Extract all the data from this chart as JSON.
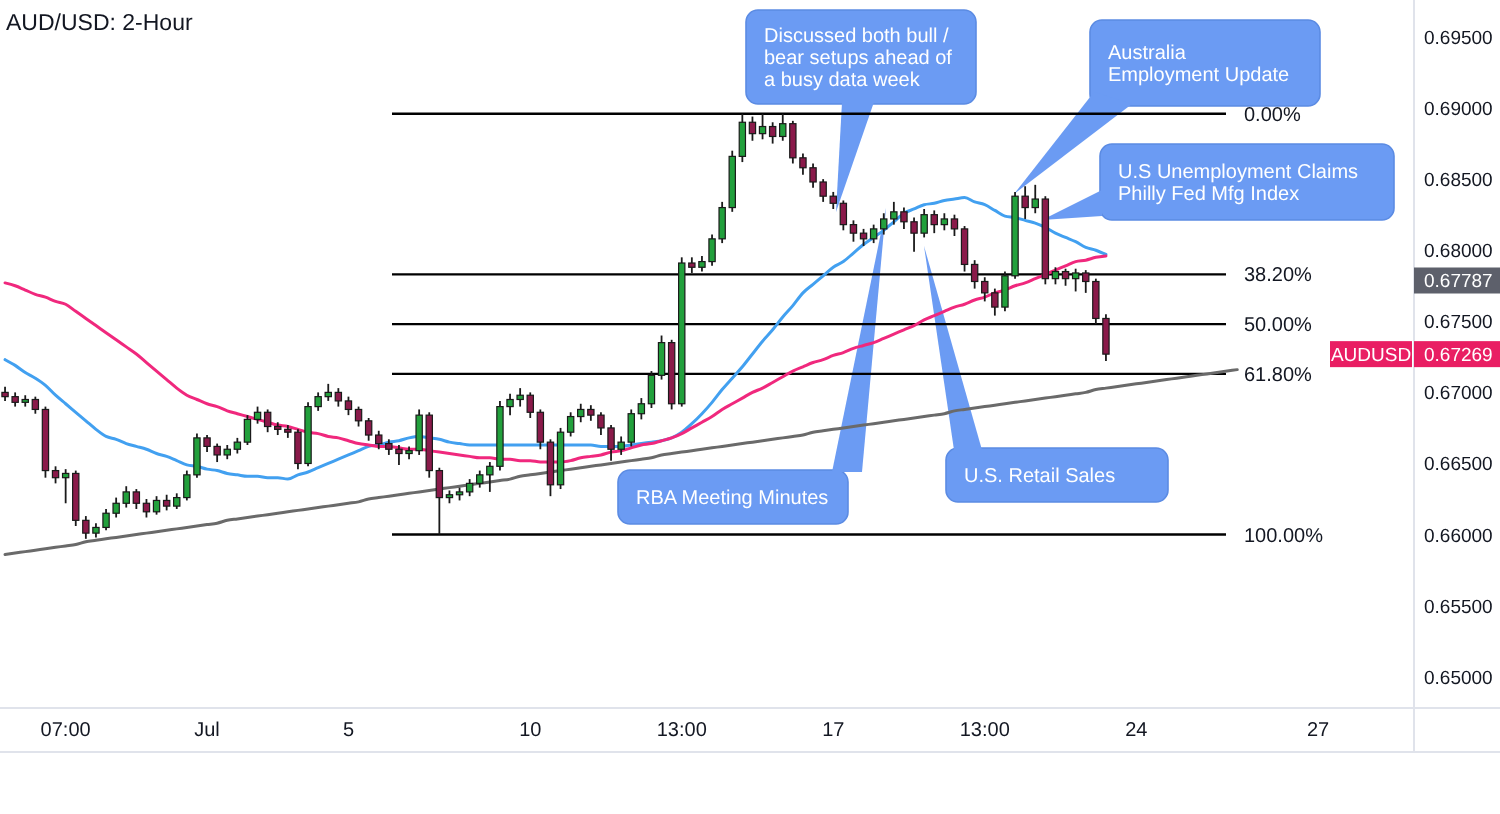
{
  "chart_data": {
    "type": "candlestick",
    "title": "AUD/USD: 2-Hour",
    "categories": [
      null,
      null,
      null,
      null,
      null,
      null,
      "07:00",
      null,
      null,
      null,
      null,
      null,
      null,
      null,
      null,
      null,
      null,
      null,
      null,
      null,
      "Jul",
      null,
      null,
      null,
      null,
      null,
      null,
      null,
      null,
      null,
      null,
      null,
      null,
      null,
      "5",
      null,
      null,
      null,
      null,
      null,
      null,
      null,
      null,
      null,
      null,
      null,
      null,
      null,
      null,
      null,
      null,
      null,
      "10",
      null,
      null,
      null,
      null,
      null,
      null,
      null,
      null,
      null,
      null,
      null,
      null,
      null,
      null,
      "13:00",
      null,
      null,
      null,
      null,
      null,
      null,
      null,
      null,
      null,
      null,
      null,
      null,
      null,
      null,
      "17",
      null,
      null,
      null,
      null,
      null,
      null,
      null,
      null,
      null,
      null,
      null,
      null,
      null,
      null,
      "13:00",
      null,
      null,
      null,
      null,
      null,
      null,
      null,
      null,
      null,
      null,
      null,
      null,
      null,
      null,
      "24",
      null,
      null,
      null,
      null,
      null,
      null,
      null,
      null,
      null,
      null,
      null,
      null,
      null,
      null,
      null,
      null,
      null,
      "27",
      null,
      null,
      null,
      null,
      null,
      null,
      null,
      null,
      null
    ],
    "ohlc": [
      [
        0.67,
        0.6704,
        0.6694,
        0.6697
      ],
      [
        0.6697,
        0.67,
        0.669,
        0.6693
      ],
      [
        0.6693,
        0.6698,
        0.669,
        0.6695
      ],
      [
        0.6695,
        0.6697,
        0.6685,
        0.6688
      ],
      [
        0.6688,
        0.669,
        0.664,
        0.6645
      ],
      [
        0.6645,
        0.6648,
        0.6636,
        0.664
      ],
      [
        0.664,
        0.6646,
        0.6622,
        0.6643
      ],
      [
        0.6643,
        0.6645,
        0.6606,
        0.661
      ],
      [
        0.661,
        0.6613,
        0.6597,
        0.6601
      ],
      [
        0.6601,
        0.6608,
        0.6598,
        0.6605
      ],
      [
        0.6605,
        0.6618,
        0.6603,
        0.6615
      ],
      [
        0.6615,
        0.6626,
        0.6612,
        0.6622
      ],
      [
        0.6622,
        0.6634,
        0.6619,
        0.663
      ],
      [
        0.663,
        0.6632,
        0.6618,
        0.6622
      ],
      [
        0.6622,
        0.6625,
        0.6612,
        0.6616
      ],
      [
        0.6616,
        0.6627,
        0.6614,
        0.6624
      ],
      [
        0.6624,
        0.6628,
        0.6617,
        0.662
      ],
      [
        0.662,
        0.6629,
        0.6618,
        0.6626
      ],
      [
        0.6626,
        0.6645,
        0.6624,
        0.6642
      ],
      [
        0.6642,
        0.6671,
        0.664,
        0.6668
      ],
      [
        0.6668,
        0.667,
        0.6658,
        0.6662
      ],
      [
        0.6662,
        0.6664,
        0.6651,
        0.6656
      ],
      [
        0.6656,
        0.6663,
        0.6653,
        0.666
      ],
      [
        0.666,
        0.6668,
        0.6657,
        0.6665
      ],
      [
        0.6665,
        0.6684,
        0.6663,
        0.6681
      ],
      [
        0.6681,
        0.669,
        0.6678,
        0.6686
      ],
      [
        0.6686,
        0.6688,
        0.6672,
        0.6676
      ],
      [
        0.6676,
        0.6679,
        0.667,
        0.6674
      ],
      [
        0.6674,
        0.6677,
        0.6668,
        0.6672
      ],
      [
        0.6672,
        0.6674,
        0.6646,
        0.665
      ],
      [
        0.665,
        0.6693,
        0.6648,
        0.669
      ],
      [
        0.669,
        0.67,
        0.6687,
        0.6697
      ],
      [
        0.6697,
        0.6706,
        0.6694,
        0.67
      ],
      [
        0.67,
        0.6703,
        0.669,
        0.6694
      ],
      [
        0.6694,
        0.6697,
        0.6684,
        0.6688
      ],
      [
        0.6688,
        0.669,
        0.6676,
        0.668
      ],
      [
        0.668,
        0.6682,
        0.6666,
        0.667
      ],
      [
        0.667,
        0.6673,
        0.666,
        0.6664
      ],
      [
        0.6664,
        0.6667,
        0.6656,
        0.666
      ],
      [
        0.666,
        0.6663,
        0.6649,
        0.6657
      ],
      [
        0.6657,
        0.6662,
        0.6653,
        0.6659
      ],
      [
        0.6659,
        0.6688,
        0.6656,
        0.6684
      ],
      [
        0.6684,
        0.6686,
        0.664,
        0.6645
      ],
      [
        0.6645,
        0.6647,
        0.66,
        0.6626
      ],
      [
        0.6626,
        0.6631,
        0.6622,
        0.6628
      ],
      [
        0.6628,
        0.6633,
        0.6624,
        0.663
      ],
      [
        0.663,
        0.6639,
        0.6627,
        0.6636
      ],
      [
        0.6636,
        0.6645,
        0.6633,
        0.6642
      ],
      [
        0.6642,
        0.6651,
        0.663,
        0.6648
      ],
      [
        0.6648,
        0.6694,
        0.6645,
        0.669
      ],
      [
        0.669,
        0.6699,
        0.6684,
        0.6695
      ],
      [
        0.6695,
        0.6703,
        0.669,
        0.6698
      ],
      [
        0.6698,
        0.67,
        0.6682,
        0.6686
      ],
      [
        0.6686,
        0.6688,
        0.666,
        0.6665
      ],
      [
        0.6665,
        0.6667,
        0.6627,
        0.6635
      ],
      [
        0.6635,
        0.6675,
        0.6632,
        0.6672
      ],
      [
        0.6672,
        0.6686,
        0.6669,
        0.6683
      ],
      [
        0.6683,
        0.6692,
        0.6679,
        0.6688
      ],
      [
        0.6688,
        0.6691,
        0.668,
        0.6684
      ],
      [
        0.6684,
        0.6686,
        0.667,
        0.6675
      ],
      [
        0.6675,
        0.6677,
        0.6652,
        0.666
      ],
      [
        0.666,
        0.6669,
        0.6656,
        0.6665
      ],
      [
        0.6665,
        0.6688,
        0.6662,
        0.6685
      ],
      [
        0.6685,
        0.6696,
        0.6681,
        0.6692
      ],
      [
        0.6692,
        0.6715,
        0.6689,
        0.6712
      ],
      [
        0.6712,
        0.674,
        0.6709,
        0.6735
      ],
      [
        0.6735,
        0.6737,
        0.6688,
        0.6692
      ],
      [
        0.6692,
        0.6795,
        0.669,
        0.6791
      ],
      [
        0.6791,
        0.6795,
        0.6784,
        0.6788
      ],
      [
        0.6788,
        0.6796,
        0.6785,
        0.6792
      ],
      [
        0.6792,
        0.6811,
        0.6789,
        0.6808
      ],
      [
        0.6808,
        0.6834,
        0.6805,
        0.683
      ],
      [
        0.683,
        0.687,
        0.6827,
        0.6866
      ],
      [
        0.6866,
        0.6896,
        0.6862,
        0.689
      ],
      [
        0.689,
        0.6894,
        0.6877,
        0.6882
      ],
      [
        0.6882,
        0.6896,
        0.6878,
        0.6887
      ],
      [
        0.6887,
        0.689,
        0.6875,
        0.688
      ],
      [
        0.688,
        0.6896,
        0.6877,
        0.6889
      ],
      [
        0.6889,
        0.6891,
        0.6861,
        0.6865
      ],
      [
        0.6865,
        0.6868,
        0.6853,
        0.6858
      ],
      [
        0.6858,
        0.6861,
        0.6844,
        0.6848
      ],
      [
        0.6848,
        0.685,
        0.6834,
        0.6838
      ],
      [
        0.6838,
        0.6841,
        0.6829,
        0.6833
      ],
      [
        0.6833,
        0.6835,
        0.6814,
        0.6818
      ],
      [
        0.6818,
        0.6821,
        0.6806,
        0.6812
      ],
      [
        0.6812,
        0.6815,
        0.6803,
        0.6808
      ],
      [
        0.6808,
        0.6818,
        0.6805,
        0.6815
      ],
      [
        0.6815,
        0.6826,
        0.6811,
        0.6822
      ],
      [
        0.6822,
        0.6834,
        0.6818,
        0.6827
      ],
      [
        0.6827,
        0.683,
        0.6815,
        0.682
      ],
      [
        0.682,
        0.6823,
        0.6799,
        0.6812
      ],
      [
        0.6812,
        0.6829,
        0.6809,
        0.6825
      ],
      [
        0.6825,
        0.6828,
        0.6812,
        0.6818
      ],
      [
        0.6818,
        0.6826,
        0.6814,
        0.6822
      ],
      [
        0.6822,
        0.6825,
        0.681,
        0.6815
      ],
      [
        0.6815,
        0.6817,
        0.6785,
        0.679
      ],
      [
        0.679,
        0.6793,
        0.6773,
        0.6778
      ],
      [
        0.6778,
        0.6781,
        0.6764,
        0.677
      ],
      [
        0.677,
        0.6773,
        0.6754,
        0.676
      ],
      [
        0.676,
        0.6785,
        0.6757,
        0.6782
      ],
      [
        0.6782,
        0.6841,
        0.678,
        0.6838
      ],
      [
        0.6838,
        0.6845,
        0.6822,
        0.683
      ],
      [
        0.683,
        0.6846,
        0.6826,
        0.6836
      ],
      [
        0.6836,
        0.6838,
        0.6776,
        0.678
      ],
      [
        0.678,
        0.6788,
        0.6776,
        0.6785
      ],
      [
        0.6785,
        0.6787,
        0.6775,
        0.678
      ],
      [
        0.678,
        0.6787,
        0.6771,
        0.6784
      ],
      [
        0.6784,
        0.6786,
        0.677,
        0.6778
      ],
      [
        0.6778,
        0.678,
        0.6748,
        0.6752
      ],
      [
        0.6752,
        0.6755,
        0.6722,
        0.67269
      ],
      null,
      null,
      null,
      null,
      null,
      null,
      null,
      null,
      null,
      null,
      null,
      null,
      null,
      null,
      null,
      null,
      null,
      null,
      null,
      null,
      null,
      null,
      null,
      null,
      null,
      null,
      null,
      null,
      null,
      null
    ],
    "colors": [
      "#8a1a4a",
      "#8a1a4a",
      "#22a03c",
      "#8a1a4a",
      "#8a1a4a",
      "#8a1a4a",
      "#22a03c",
      "#8a1a4a",
      "#8a1a4a",
      "#22a03c",
      "#22a03c",
      "#22a03c",
      "#22a03c",
      "#8a1a4a",
      "#8a1a4a",
      "#22a03c",
      "#8a1a4a",
      "#22a03c",
      "#22a03c",
      "#22a03c",
      "#8a1a4a",
      "#8a1a4a",
      "#22a03c",
      "#22a03c",
      "#22a03c",
      "#22a03c",
      "#8a1a4a",
      "#8a1a4a",
      "#8a1a4a",
      "#8a1a4a",
      "#22a03c",
      "#22a03c",
      "#22a03c",
      "#8a1a4a",
      "#8a1a4a",
      "#8a1a4a",
      "#8a1a4a",
      "#8a1a4a",
      "#8a1a4a",
      "#8a1a4a",
      "#22a03c",
      "#22a03c",
      "#8a1a4a",
      "#8a1a4a",
      "#22a03c",
      "#22a03c",
      "#22a03c",
      "#22a03c",
      "#22a03c",
      "#22a03c",
      "#22a03c",
      "#22a03c",
      "#8a1a4a",
      "#8a1a4a",
      "#8a1a4a",
      "#22a03c",
      "#22a03c",
      "#22a03c",
      "#8a1a4a",
      "#8a1a4a",
      "#8a1a4a",
      "#22a03c",
      "#22a03c",
      "#22a03c",
      "#22a03c",
      "#22a03c",
      "#8a1a4a",
      "#22a03c",
      "#8a1a4a",
      "#22a03c",
      "#22a03c",
      "#22a03c",
      "#22a03c",
      "#22a03c",
      "#8a1a4a",
      "#22a03c",
      "#8a1a4a",
      "#22a03c",
      "#8a1a4a",
      "#8a1a4a",
      "#8a1a4a",
      "#8a1a4a",
      "#8a1a4a",
      "#8a1a4a",
      "#8a1a4a",
      "#8a1a4a",
      "#22a03c",
      "#22a03c",
      "#22a03c",
      "#8a1a4a",
      "#8a1a4a",
      "#22a03c",
      "#8a1a4a",
      "#22a03c",
      "#8a1a4a",
      "#8a1a4a",
      "#8a1a4a",
      "#8a1a4a",
      "#8a1a4a",
      "#22a03c",
      "#22a03c",
      "#8a1a4a",
      "#22a03c",
      "#8a1a4a",
      "#22a03c",
      "#8a1a4a",
      "#22a03c",
      "#8a1a4a",
      "#8a1a4a",
      "#8a1a4a",
      null,
      null,
      null,
      null,
      null,
      null,
      null,
      null,
      null,
      null,
      null,
      null,
      null,
      null,
      null,
      null,
      null,
      null,
      null,
      null,
      null,
      null,
      null,
      null,
      null,
      null,
      null,
      null,
      null,
      null
    ],
    "ylim": [
      0.6478,
      0.6976
    ],
    "yticks": [
      {
        "value": 0.65,
        "label": "0.65000"
      },
      {
        "value": 0.655,
        "label": "0.65500"
      },
      {
        "value": 0.66,
        "label": "0.66000"
      },
      {
        "value": 0.665,
        "label": "0.66500"
      },
      {
        "value": 0.67,
        "label": "0.67000"
      },
      {
        "value": 0.675,
        "label": "0.67500"
      },
      {
        "value": 0.68,
        "label": "0.68000"
      },
      {
        "value": 0.685,
        "label": "0.68500"
      },
      {
        "value": 0.69,
        "label": "0.69000"
      },
      {
        "value": 0.695,
        "label": "0.69500"
      }
    ],
    "series": [
      {
        "type": "line",
        "color": "#42a0f0",
        "values": [
          0.6723,
          0.6719,
          0.6714,
          0.671,
          0.6705,
          0.6698,
          0.6692,
          0.6686,
          0.668,
          0.6674,
          0.6669,
          0.6667,
          0.6664,
          0.6662,
          0.666,
          0.6657,
          0.6655,
          0.6652,
          0.6649,
          0.6648,
          0.6646,
          0.6645,
          0.6643,
          0.6642,
          0.6641,
          0.6641,
          0.664,
          0.664,
          0.6639,
          0.6642,
          0.6644,
          0.6647,
          0.665,
          0.6653,
          0.6656,
          0.6659,
          0.6662,
          0.6663,
          0.6665,
          0.6666,
          0.6668,
          0.6669,
          0.6668,
          0.6667,
          0.6665,
          0.6664,
          0.6663,
          0.6663,
          0.6663,
          0.6663,
          0.6663,
          0.6663,
          0.6663,
          0.6663,
          0.6663,
          0.6663,
          0.6663,
          0.6663,
          0.6663,
          0.6662,
          0.6662,
          0.6662,
          0.6663,
          0.6664,
          0.6665,
          0.6666,
          0.6668,
          0.6672,
          0.6678,
          0.6685,
          0.6693,
          0.6702,
          0.671,
          0.6718,
          0.6727,
          0.6736,
          0.6744,
          0.6753,
          0.6761,
          0.677,
          0.6776,
          0.6782,
          0.6788,
          0.6792,
          0.6798,
          0.6804,
          0.6809,
          0.6814,
          0.682,
          0.6826,
          0.6829,
          0.6832,
          0.6833,
          0.6835,
          0.6836,
          0.6837,
          0.6834,
          0.6832,
          0.6828,
          0.6824,
          0.6823,
          0.6821,
          0.6819,
          0.6816,
          0.6812,
          0.6809,
          0.6806,
          0.6802,
          0.68,
          0.6797,
          null,
          null,
          null,
          null,
          null,
          null,
          null,
          null,
          null,
          null,
          null,
          null,
          null,
          null,
          null,
          null,
          null,
          null,
          null,
          null,
          null,
          null,
          null,
          null,
          null,
          null,
          null,
          null,
          null,
          null
        ]
      },
      {
        "type": "line",
        "color": "#f0287d",
        "values": [
          0.6777,
          0.6775,
          0.6772,
          0.6769,
          0.6767,
          0.6764,
          0.6762,
          0.6757,
          0.6752,
          0.6747,
          0.6742,
          0.6737,
          0.6732,
          0.6727,
          0.6721,
          0.6715,
          0.6709,
          0.6703,
          0.6698,
          0.6695,
          0.6692,
          0.669,
          0.6687,
          0.6685,
          0.6683,
          0.6681,
          0.6679,
          0.6677,
          0.6676,
          0.6674,
          0.6672,
          0.6671,
          0.6669,
          0.6668,
          0.6666,
          0.6664,
          0.6663,
          0.6662,
          0.6662,
          0.6661,
          0.666,
          0.666,
          0.6659,
          0.6658,
          0.6657,
          0.6656,
          0.6655,
          0.6654,
          0.6654,
          0.6653,
          0.6653,
          0.6652,
          0.6652,
          0.6651,
          0.6651,
          0.6651,
          0.6652,
          0.6654,
          0.6655,
          0.6656,
          0.6658,
          0.6659,
          0.6661,
          0.6663,
          0.6664,
          0.6666,
          0.6668,
          0.6671,
          0.6675,
          0.6679,
          0.6683,
          0.6688,
          0.6692,
          0.6696,
          0.67,
          0.6703,
          0.6707,
          0.6711,
          0.6715,
          0.6718,
          0.6721,
          0.6723,
          0.6726,
          0.6728,
          0.6731,
          0.6733,
          0.6735,
          0.6738,
          0.6741,
          0.6744,
          0.6747,
          0.6751,
          0.6754,
          0.6757,
          0.676,
          0.6762,
          0.6765,
          0.6767,
          0.677,
          0.6772,
          0.6775,
          0.6777,
          0.678,
          0.6783,
          0.6786,
          0.6789,
          0.6792,
          0.6793,
          0.6795,
          0.6796,
          null,
          null,
          null,
          null,
          null,
          null,
          null,
          null,
          null,
          null,
          null,
          null,
          null,
          null,
          null,
          null,
          null,
          null,
          null,
          null,
          null,
          null,
          null,
          null,
          null,
          null,
          null,
          null,
          null,
          null
        ]
      },
      {
        "type": "line",
        "color": "#6a6a6a",
        "values": [
          0.6586,
          0.6587,
          0.6588,
          0.6589,
          0.659,
          0.6591,
          0.6592,
          0.6593,
          0.6595,
          0.6596,
          0.6597,
          0.6598,
          0.6599,
          0.66,
          0.6601,
          0.6602,
          0.6603,
          0.6604,
          0.6605,
          0.6606,
          0.6607,
          0.6608,
          0.661,
          0.6611,
          0.6612,
          0.6613,
          0.6614,
          0.6615,
          0.6616,
          0.6617,
          0.6618,
          0.6619,
          0.662,
          0.6621,
          0.6622,
          0.6623,
          0.6625,
          0.6626,
          0.6627,
          0.6628,
          0.6629,
          0.663,
          0.6631,
          0.6632,
          0.6633,
          0.6634,
          0.6635,
          0.6636,
          0.6637,
          0.6638,
          0.6639,
          0.6641,
          0.6642,
          0.6643,
          0.6644,
          0.6645,
          0.6646,
          0.6647,
          0.6648,
          0.6649,
          0.665,
          0.6651,
          0.6652,
          0.6653,
          0.6654,
          0.6656,
          0.6657,
          0.6658,
          0.6659,
          0.666,
          0.6661,
          0.6662,
          0.6663,
          0.6664,
          0.6665,
          0.6666,
          0.6667,
          0.6668,
          0.6669,
          0.667,
          0.6672,
          0.6673,
          0.6674,
          0.6675,
          0.6676,
          0.6677,
          0.6678,
          0.6679,
          0.668,
          0.6681,
          0.6682,
          0.6683,
          0.6684,
          0.6685,
          0.6687,
          0.6688,
          0.6689,
          0.669,
          0.6691,
          0.6692,
          0.6693,
          0.6694,
          0.6695,
          0.6696,
          0.6697,
          0.6698,
          0.6699,
          0.67,
          0.6702,
          0.6703,
          0.6704,
          0.6705,
          0.6706,
          0.6707,
          0.6708,
          0.6709,
          0.671,
          0.6711,
          0.6712,
          0.6713,
          0.6714,
          0.6715,
          0.6716,
          null,
          null,
          null,
          null,
          null,
          null,
          null,
          null,
          null,
          null,
          null,
          null,
          null,
          null,
          null,
          null,
          null
        ]
      }
    ],
    "ref_lines": [
      {
        "axis": "y",
        "value": 0.6896,
        "color": "#000000"
      },
      {
        "axis": "y",
        "value": 0.6783,
        "color": "#000000"
      },
      {
        "axis": "y",
        "value": 0.6748,
        "color": "#000000"
      },
      {
        "axis": "y",
        "value": 0.6713,
        "color": "#000000"
      },
      {
        "axis": "y",
        "value": 0.66,
        "color": "#000000"
      }
    ],
    "annotations": [
      "Discussed both bull /\nbear setups ahead of\na busy data week",
      "Australia\nEmployment Update",
      "U.S Unemployment Claims\nPhilly Fed Mfg Index",
      "RBA Meeting Minutes",
      "U.S. Retail Sales",
      "0.00%",
      "38.20%",
      "50.00%",
      "61.80%",
      "100.00%",
      {
        "text": "0.67787",
        "y": 0.67787
      },
      {
        "text": "AUDUSD",
        "y": 0.67269
      },
      {
        "text": "0.67269",
        "y": 0.67269
      }
    ]
  }
}
